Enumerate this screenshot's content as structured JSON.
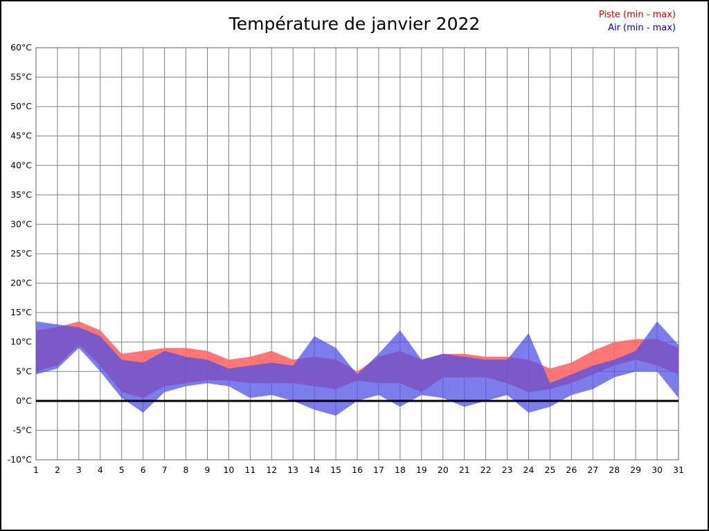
{
  "title": "Température de janvier 2022",
  "legend": {
    "piste_label": "Piste (min - max)",
    "air_label": "Air (min - max)",
    "piste_color": "#cc0000",
    "air_color": "#0000bb"
  },
  "chart_data": {
    "type": "area",
    "title": "Température de janvier 2022",
    "xlabel": "",
    "ylabel": "",
    "ylim": [
      -10,
      60
    ],
    "ytick_step": 5,
    "grid": true,
    "zero_line": true,
    "legend_position": "top-right",
    "yticks": [
      "60°C",
      "55°C",
      "50°C",
      "45°C",
      "40°C",
      "35°C",
      "30°C",
      "25°C",
      "20°C",
      "15°C",
      "10°C",
      "5°C",
      "0°C",
      "-5°C",
      "-10°C"
    ],
    "ytick_values": [
      60,
      55,
      50,
      45,
      40,
      35,
      30,
      25,
      20,
      15,
      10,
      5,
      0,
      -5,
      -10
    ],
    "x": [
      1,
      2,
      3,
      4,
      5,
      6,
      7,
      8,
      9,
      10,
      11,
      12,
      13,
      14,
      15,
      16,
      17,
      18,
      19,
      20,
      21,
      22,
      23,
      24,
      25,
      26,
      27,
      28,
      29,
      30,
      31
    ],
    "series": [
      {
        "name": "Piste (min - max)",
        "band": true,
        "color": "#ff6a6a",
        "min": [
          5,
          6,
          9.5,
          6,
          1.5,
          0.5,
          2.5,
          3,
          3.5,
          3.5,
          3,
          3,
          3,
          2.5,
          2,
          3.5,
          3,
          3,
          1.5,
          4,
          4,
          4,
          3,
          1.5,
          2,
          3,
          4.5,
          6,
          7,
          6,
          4.5
        ],
        "max": [
          12,
          12.5,
          13.5,
          12,
          8,
          8.5,
          9,
          9,
          8.5,
          7,
          7.5,
          8.5,
          7,
          7.5,
          7,
          5,
          7.5,
          8.5,
          7,
          8,
          8,
          7.5,
          7.5,
          7,
          5.5,
          6.5,
          8.5,
          10,
          10.5,
          10.5,
          9
        ]
      },
      {
        "name": "Air (min - max)",
        "band": true,
        "color": "#5050e6",
        "min": [
          4.5,
          5.5,
          9,
          5,
          0.5,
          -2,
          1.5,
          2.5,
          3,
          2.5,
          0.5,
          1,
          0,
          -1.5,
          -2.5,
          0,
          1,
          -1,
          1,
          0.5,
          -1,
          0,
          1,
          -2,
          -1,
          1,
          2,
          4,
          5,
          5,
          0.5
        ],
        "max": [
          13.5,
          13,
          12.5,
          11,
          7,
          6.5,
          8.5,
          7.5,
          7,
          5.5,
          6,
          6.5,
          6,
          11,
          9,
          4.5,
          8,
          12,
          7,
          8,
          7.5,
          7,
          7,
          11.5,
          3,
          4.5,
          6,
          7,
          8.5,
          13.5,
          9.5
        ]
      }
    ]
  }
}
